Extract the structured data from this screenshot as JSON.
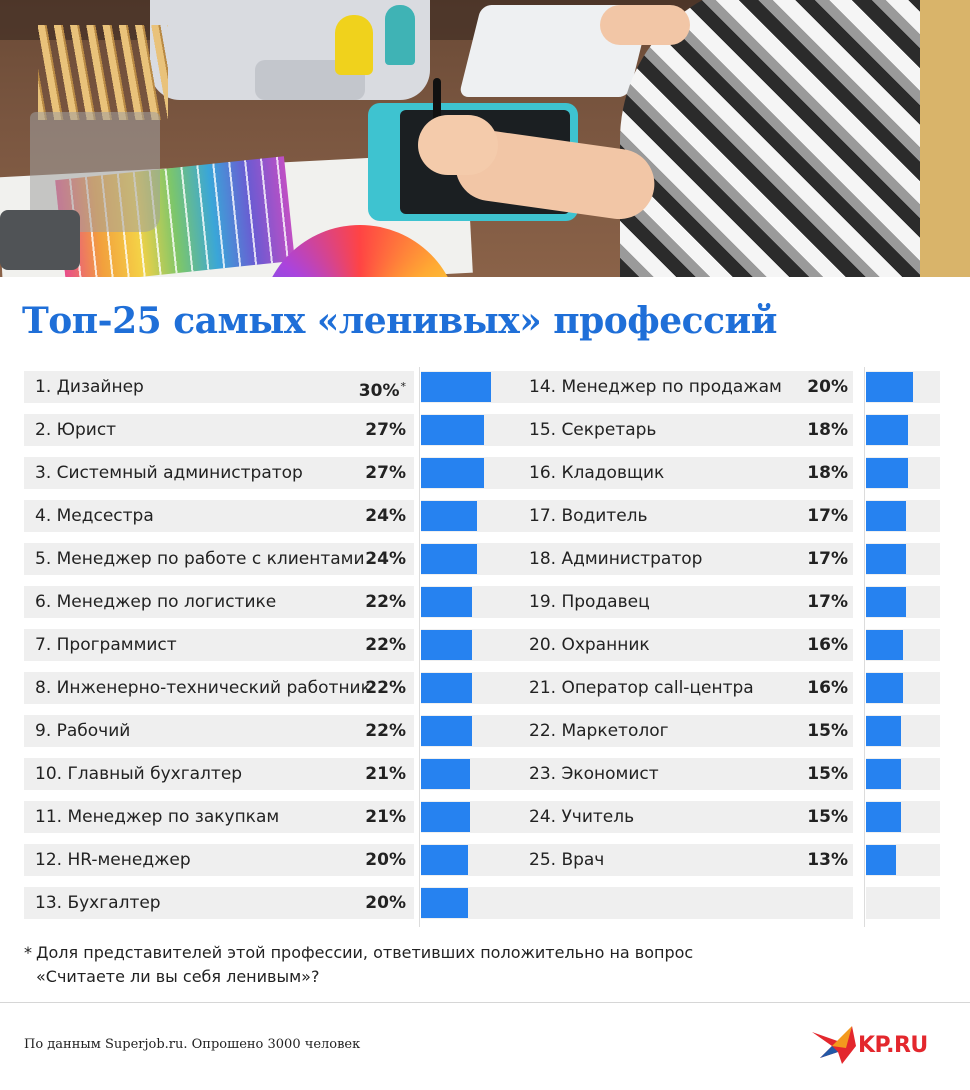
{
  "title": "Топ-25 самых «ленивых» профессий",
  "left_rows": [
    {
      "label": "1. Дизайнер",
      "pct": "30%",
      "mark": "*"
    },
    {
      "label": "2. Юрист",
      "pct": "27%"
    },
    {
      "label": "3. Системный администратор",
      "pct": "27%"
    },
    {
      "label": "4. Медсестра",
      "pct": "24%"
    },
    {
      "label": "5. Менеджер по работе с клиентами",
      "pct": "24%"
    },
    {
      "label": "6. Менеджер по логистике",
      "pct": "22%"
    },
    {
      "label": "7. Программист",
      "pct": "22%"
    },
    {
      "label": "8. Инженерно-технический работник",
      "pct": "22%"
    },
    {
      "label": "9. Рабочий",
      "pct": "22%"
    },
    {
      "label": "10. Главный бухгалтер",
      "pct": "21%"
    },
    {
      "label": "11. Менеджер по закупкам",
      "pct": "21%"
    },
    {
      "label": "12. HR-менеджер",
      "pct": "20%"
    },
    {
      "label": "13. Бухгалтер",
      "pct": "20%"
    }
  ],
  "right_rows": [
    {
      "label": "14. Менеджер по продажам",
      "pct": "20%"
    },
    {
      "label": "15. Секретарь",
      "pct": "18%"
    },
    {
      "label": "16. Кладовщик",
      "pct": "18%"
    },
    {
      "label": "17. Водитель",
      "pct": "17%"
    },
    {
      "label": "18. Администратор",
      "pct": "17%"
    },
    {
      "label": "19. Продавец",
      "pct": "17%"
    },
    {
      "label": "20. Охранник",
      "pct": "16%"
    },
    {
      "label": "21. Оператор call-центра",
      "pct": "16%"
    },
    {
      "label": "22. Маркетолог",
      "pct": "15%"
    },
    {
      "label": "23. Экономист",
      "pct": "15%"
    },
    {
      "label": "24. Учитель",
      "pct": "15%"
    },
    {
      "label": "25. Врач",
      "pct": "13%"
    },
    {
      "label": "",
      "pct": ""
    }
  ],
  "footnote": {
    "star": "*",
    "line1": "Доля представителей этой профессии, ответивших положительно на вопрос",
    "line2": "«Считаете ли вы себя ленивым»?"
  },
  "source": "По данным Superjob.ru. Опрошено 3000 человек",
  "logo_text": "KP.RU",
  "colors": {
    "title": "#1f6fd8",
    "bar": "#2682f0",
    "row_bg": "#efefef",
    "logo": "#e3272d"
  },
  "chart_data": {
    "type": "bar",
    "title": "Топ-25 самых «ленивых» профессий",
    "unit": "%",
    "categories": [
      "Дизайнер",
      "Юрист",
      "Системный администратор",
      "Медсестра",
      "Менеджер по работе с клиентами",
      "Менеджер по логистике",
      "Программист",
      "Инженерно-технический работник",
      "Рабочий",
      "Главный бухгалтер",
      "Менеджер по закупкам",
      "HR-менеджер",
      "Бухгалтер",
      "Менеджер по продажам",
      "Секретарь",
      "Кладовщик",
      "Водитель",
      "Администратор",
      "Продавец",
      "Охранник",
      "Оператор call-центра",
      "Маркетолог",
      "Экономист",
      "Учитель",
      "Врач"
    ],
    "values": [
      30,
      27,
      27,
      24,
      24,
      22,
      22,
      22,
      22,
      21,
      21,
      20,
      20,
      20,
      18,
      18,
      17,
      17,
      17,
      16,
      16,
      15,
      15,
      15,
      13
    ],
    "ylim": [
      0,
      30
    ],
    "orientation": "horizontal"
  }
}
